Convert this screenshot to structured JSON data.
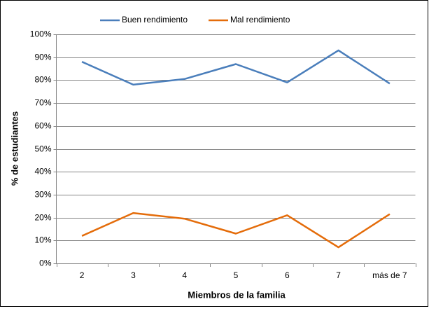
{
  "chart_data": {
    "type": "line",
    "x_label": "Miembros de la familia",
    "y_label": "% de estudiantes",
    "categories": [
      "2",
      "3",
      "4",
      "5",
      "6",
      "7",
      "más de 7"
    ],
    "series": [
      {
        "name": "Buen rendimiento",
        "color": "#4a7ebb",
        "values": [
          88,
          78,
          80.5,
          87,
          79,
          93,
          78.5
        ]
      },
      {
        "name": "Mal rendimiento",
        "color": "#e46c0a",
        "values": [
          12,
          22,
          19.5,
          13,
          21,
          7,
          21.5
        ]
      }
    ],
    "ylim": [
      0,
      100
    ],
    "yticks": [
      {
        "value": 0,
        "label": "0%"
      },
      {
        "value": 10,
        "label": "10%"
      },
      {
        "value": 20,
        "label": "20%"
      },
      {
        "value": 30,
        "label": "30%"
      },
      {
        "value": 40,
        "label": "40%"
      },
      {
        "value": 50,
        "label": "50%"
      },
      {
        "value": 60,
        "label": "60%"
      },
      {
        "value": 70,
        "label": "70%"
      },
      {
        "value": 80,
        "label": "80%"
      },
      {
        "value": 90,
        "label": "90%"
      },
      {
        "value": 100,
        "label": "100%"
      }
    ],
    "grid": true,
    "legend": "top"
  }
}
